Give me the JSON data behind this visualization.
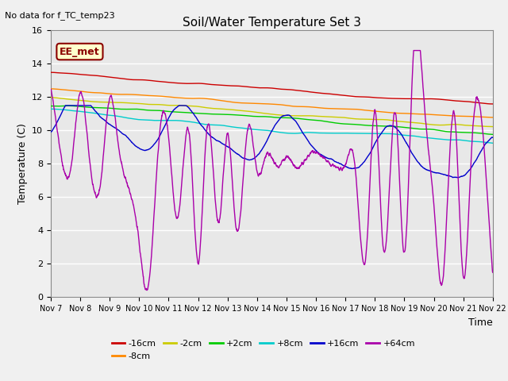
{
  "title": "Soil/Water Temperature Set 3",
  "xlabel": "Time",
  "ylabel": "Temperature (C)",
  "note": "No data for f_TC_temp23",
  "label_box": "EE_met",
  "ylim": [
    0,
    16
  ],
  "xlim": [
    0,
    15
  ],
  "x_tick_labels": [
    "Nov 7",
    "Nov 8",
    "Nov 9",
    "Nov 10",
    "Nov 11",
    "Nov 12",
    "Nov 13",
    "Nov 14",
    "Nov 15",
    "Nov 16",
    "Nov 17",
    "Nov 18",
    "Nov 19",
    "Nov 20",
    "Nov 21",
    "Nov 22"
  ],
  "series": [
    {
      "label": "-16cm",
      "color": "#cc0000"
    },
    {
      "label": "-8cm",
      "color": "#ff8800"
    },
    {
      "label": "-2cm",
      "color": "#cccc00"
    },
    {
      "label": "+2cm",
      "color": "#00cc00"
    },
    {
      "label": "+8cm",
      "color": "#00cccc"
    },
    {
      "label": "+16cm",
      "color": "#0000cc"
    },
    {
      "label": "+64cm",
      "color": "#aa00aa"
    }
  ],
  "background_color": "#e8e8e8",
  "grid_color": "#ffffff",
  "fig_bg": "#f0f0f0"
}
